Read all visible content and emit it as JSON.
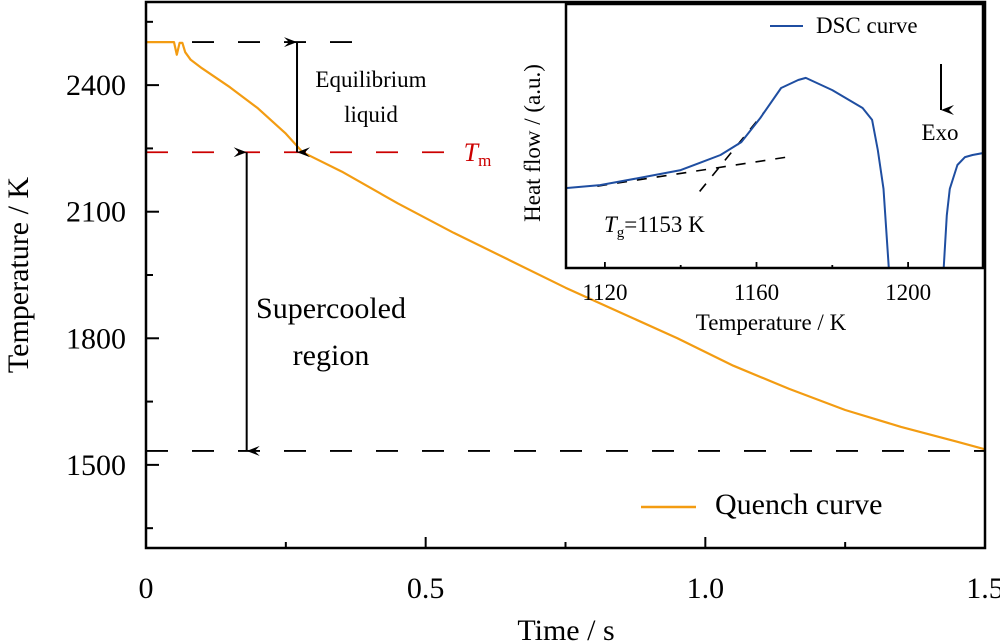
{
  "chart_data": [
    {
      "id": "main",
      "type": "line",
      "title": "",
      "xlabel": "Time / s",
      "ylabel": "Temperature / K",
      "xlim": [
        0,
        1.5
      ],
      "ylim": [
        1303,
        2597
      ],
      "xticks": [
        0,
        0.5,
        1.0,
        1.5
      ],
      "xtick_labels": [
        "0",
        "0.5",
        "1.0",
        "1.5"
      ],
      "xminor_ticks": [
        0.25,
        0.75,
        1.25
      ],
      "yticks": [
        1500,
        1800,
        2100,
        2400
      ],
      "ytick_labels": [
        "1500",
        "1800",
        "2100",
        "2400"
      ],
      "yminor_ticks": [
        1350,
        1650,
        1950,
        2250,
        2550
      ],
      "grid": false,
      "legend": {
        "position": "bottom-right",
        "entries": [
          "Quench curve"
        ]
      },
      "series": [
        {
          "name": "Quench curve",
          "color": "#f39c12",
          "x": [
            0,
            0.03,
            0.05,
            0.055,
            0.06,
            0.065,
            0.07,
            0.08,
            0.1,
            0.15,
            0.2,
            0.25,
            0.28,
            0.35,
            0.45,
            0.55,
            0.65,
            0.75,
            0.85,
            0.95,
            1.05,
            1.15,
            1.25,
            1.35,
            1.45,
            1.5
          ],
          "y": [
            2502,
            2502,
            2502,
            2472,
            2500,
            2500,
            2478,
            2460,
            2440,
            2395,
            2345,
            2285,
            2241,
            2195,
            2120,
            2050,
            1985,
            1920,
            1860,
            1800,
            1735,
            1680,
            1630,
            1590,
            1555,
            1537
          ]
        }
      ],
      "reference_lines": [
        {
          "name": "liquid-start",
          "y": 2502,
          "x_range": [
            0,
            0.37
          ],
          "color": "#000000",
          "style": "dashed"
        },
        {
          "name": "Tm",
          "y": 2241,
          "x_range": [
            0,
            0.55
          ],
          "color": "#cc0000",
          "style": "dashed",
          "label": "T",
          "label_sub": "m"
        },
        {
          "name": "supercooled-end",
          "y": 1533,
          "x_range": [
            0,
            1.5
          ],
          "color": "#000000",
          "style": "dashed"
        }
      ],
      "annotations": [
        {
          "name": "equilibrium-liquid",
          "text_lines": [
            "Equilibrium",
            "liquid"
          ],
          "arrow": {
            "x": 0.27,
            "y_from": 2502,
            "y_to": 2241,
            "double": true
          }
        },
        {
          "name": "supercooled-region",
          "text_lines": [
            "Supercooled",
            "region"
          ],
          "arrow": {
            "x": 0.18,
            "y_from": 2241,
            "y_to": 1533,
            "double": true
          }
        }
      ]
    },
    {
      "id": "inset",
      "type": "line",
      "title": "",
      "xlabel": "Temperature / K",
      "ylabel": "Heat flow / (a.u.)",
      "xlim": [
        1110,
        1220
      ],
      "ylim": [
        0,
        1
      ],
      "xticks": [
        1120,
        1160,
        1200
      ],
      "xtick_labels": [
        "1120",
        "1160",
        "1200"
      ],
      "xminor_ticks": [
        1140,
        1180
      ],
      "grid": false,
      "legend": {
        "position": "top-right",
        "entries": [
          "DSC curve"
        ]
      },
      "series": [
        {
          "name": "DSC curve",
          "color": "#1f4ea1",
          "segments": [
            {
              "x": [
                1110,
                1118.7,
                1129,
                1140,
                1145,
                1150.5,
                1156,
                1161,
                1166.5,
                1171,
                1173,
                1180,
                1188,
                1190.5,
                1192,
                1193.5,
                1194.9
              ],
              "y": [
                0.303,
                0.314,
                0.341,
                0.371,
                0.398,
                0.428,
                0.477,
                0.568,
                0.682,
                0.712,
                0.72,
                0.674,
                0.606,
                0.561,
                0.447,
                0.3,
                0
              ]
            },
            {
              "x": [
                1209.4,
                1210.2,
                1211,
                1213,
                1215,
                1217,
                1220
              ],
              "y": [
                0,
                0.2,
                0.3,
                0.39,
                0.42,
                0.428,
                0.436
              ]
            }
          ]
        }
      ],
      "tangent_lines": [
        {
          "name": "baseline-tangent",
          "x": [
            1118,
            1168
          ],
          "y": [
            0.31,
            0.42
          ]
        },
        {
          "name": "slope-tangent",
          "x": [
            1145,
            1162
          ],
          "y": [
            0.29,
            0.59
          ]
        }
      ],
      "annotations": [
        {
          "name": "tg-label",
          "text": "T",
          "sub": "g",
          "suffix": "=1153 K"
        },
        {
          "name": "exo-label",
          "text": "Exo",
          "arrow": "down"
        }
      ]
    }
  ]
}
